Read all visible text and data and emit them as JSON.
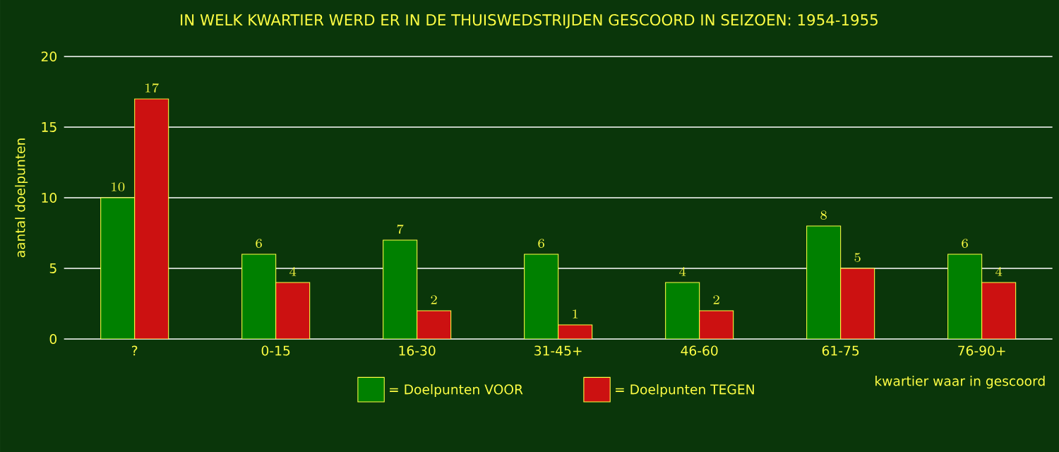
{
  "chart_data": {
    "type": "bar",
    "title": "IN WELK KWARTIER WERD ER IN DE THUISWEDSTRIJDEN GESCOORD IN SEIZOEN: 1954-1955",
    "xlabel": "kwartier waar in gescoord",
    "ylabel": "aantal doelpunten",
    "categories": [
      "?",
      "0-15",
      "16-30",
      "31-45+",
      "46-60",
      "61-75",
      "76-90+"
    ],
    "series": [
      {
        "name": "= Doelpunten VOOR",
        "color": "#008000",
        "values": [
          10,
          6,
          7,
          6,
          4,
          8,
          6
        ]
      },
      {
        "name": "= Doelpunten TEGEN",
        "color": "#cc1111",
        "values": [
          17,
          4,
          2,
          1,
          2,
          5,
          4
        ]
      }
    ],
    "ylim": [
      0,
      20
    ],
    "yticks": [
      0,
      5,
      10,
      15,
      20
    ],
    "grid": "y",
    "legend": "bottom",
    "data_labels": true
  }
}
